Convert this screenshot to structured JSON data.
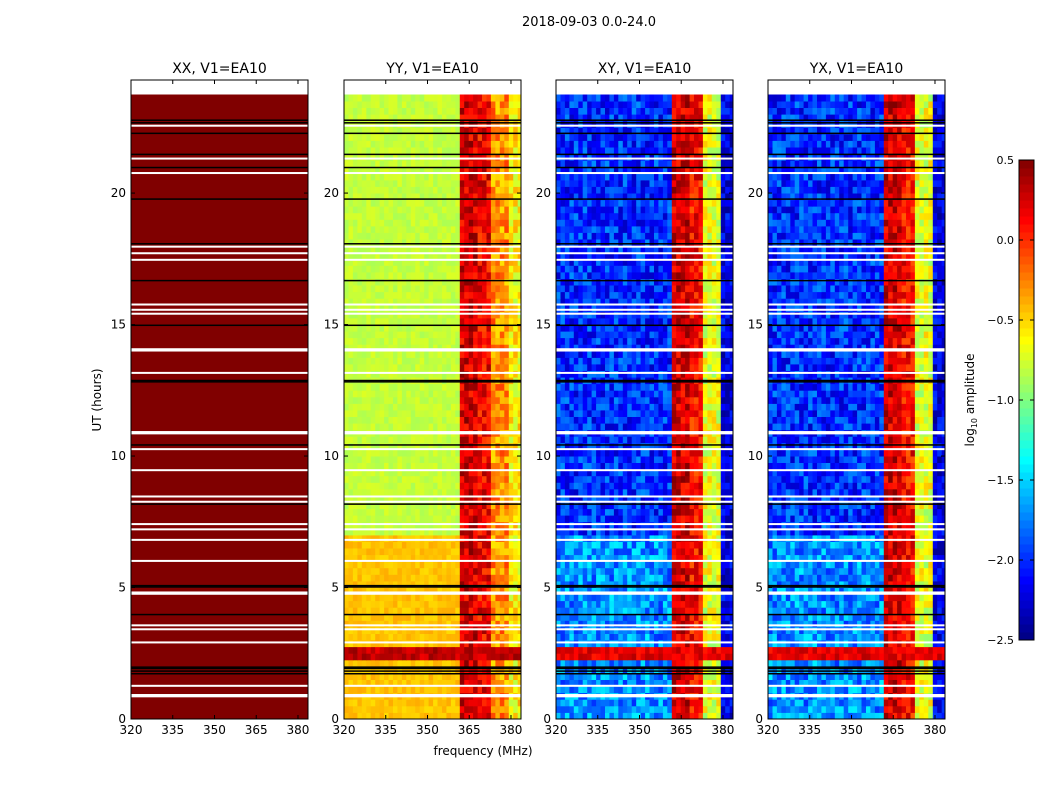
{
  "chart_data": {
    "type": "heatmap",
    "suptitle": "2018-09-03 0.0-24.0",
    "xlabel": "frequency (MHz)",
    "ylabel": "UT (hours)",
    "xlim": [
      320,
      383.6
    ],
    "ylim": [
      0,
      24.3
    ],
    "data_extent_hours": [
      0,
      23.7
    ],
    "xticks": [
      "320",
      "335",
      "350",
      "365",
      "380"
    ],
    "xtick_values": [
      320,
      335,
      350,
      365,
      380
    ],
    "yticks": [
      "0",
      "5",
      "10",
      "15",
      "20"
    ],
    "ytick_values": [
      0,
      5,
      10,
      15,
      20
    ],
    "colorbar": {
      "label_prefix": "log",
      "label_sub": "10",
      "label_suffix": " amplitude",
      "range": [
        -2.5,
        0.5
      ],
      "ticks": [
        "0.5",
        "0.0",
        "−0.5",
        "−1.0",
        "−1.5",
        "−2.0",
        "−2.5"
      ],
      "tick_values": [
        0.5,
        0.0,
        -0.5,
        -1.0,
        -1.5,
        -2.0,
        -2.5
      ],
      "colormap": "jet"
    },
    "flagged_rows_hours": [
      0.9,
      0.95,
      1.3,
      2.95,
      3.45,
      3.6,
      4.8,
      4.85,
      6.05,
      6.85,
      7.25,
      7.45,
      8.3,
      8.5,
      9.5,
      10.3,
      10.9,
      10.95,
      13.2,
      14.05,
      14.1,
      15.45,
      15.6,
      15.8,
      17.5,
      17.75,
      18.0,
      20.8,
      21.35,
      22.6
    ],
    "black_rows_hours": [
      1.75,
      1.85,
      1.95,
      2.0,
      4.0,
      5.05,
      5.1,
      8.2,
      10.45,
      12.85,
      12.9,
      15.0,
      16.7,
      18.1,
      19.8,
      21.0,
      21.5,
      22.3,
      22.7,
      22.8
    ],
    "panels": [
      {
        "title": "XX, V1=EA10",
        "base": 0.5,
        "early_base": 0.5,
        "rfi": [
          0.5,
          0.5,
          0.5,
          0.5
        ],
        "band_hours": [],
        "band_value": 0.5
      },
      {
        "title": "YY, V1=EA10",
        "base": -0.8,
        "early_base": -0.45,
        "rfi": [
          0.25,
          0.15,
          -0.3,
          -0.6
        ],
        "band_hours": [
          2.2,
          2.6
        ],
        "band_value": 0.3
      },
      {
        "title": "XY, V1=EA10",
        "base": -2.0,
        "early_base": -1.7,
        "rfi": [
          0.25,
          0.1,
          -0.7,
          -2.2
        ],
        "band_hours": [
          2.2,
          2.6
        ],
        "band_value": 0.2
      },
      {
        "title": "YX, V1=EA10",
        "base": -2.0,
        "early_base": -1.7,
        "rfi": [
          0.25,
          0.1,
          -0.7,
          -2.2
        ],
        "band_hours": [
          2.2,
          2.6
        ],
        "band_value": 0.2
      }
    ],
    "rfi_bands_mhz": [
      [
        362,
        368
      ],
      [
        368,
        373
      ],
      [
        373,
        379
      ],
      [
        379,
        383.6
      ]
    ]
  }
}
